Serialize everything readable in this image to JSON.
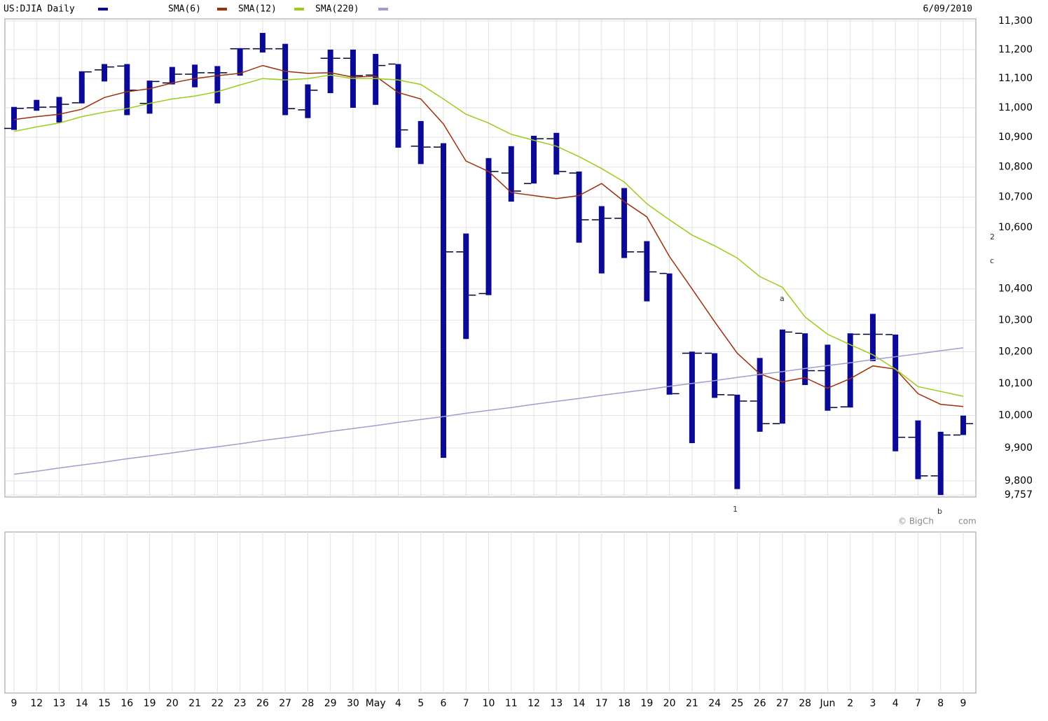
{
  "chart_data": {
    "type": "ohlc",
    "title": "US:DJIA Daily",
    "date": "6/09/2010",
    "log_scale": true,
    "grid": true,
    "categories": [
      "9",
      "12",
      "13",
      "14",
      "15",
      "16",
      "19",
      "20",
      "21",
      "22",
      "23",
      "26",
      "27",
      "28",
      "29",
      "30",
      "May",
      "4",
      "5",
      "6",
      "7",
      "10",
      "11",
      "12",
      "13",
      "14",
      "17",
      "18",
      "19",
      "20",
      "21",
      "24",
      "25",
      "26",
      "27",
      "28",
      "Jun",
      "2",
      "3",
      "4",
      "7",
      "8",
      "9"
    ],
    "ylim": [
      9751,
      11307
    ],
    "yticks": [
      {
        "value": 11300,
        "label": "11,300"
      },
      {
        "value": 11200,
        "label": "11,200"
      },
      {
        "value": 11100,
        "label": "11,100"
      },
      {
        "value": 11000,
        "label": "11,000"
      },
      {
        "value": 10900,
        "label": "10,900"
      },
      {
        "value": 10800,
        "label": "10,800"
      },
      {
        "value": 10700,
        "label": "10,700"
      },
      {
        "value": 10600,
        "label": "10,600"
      },
      {
        "value": 10400,
        "label": "10,400"
      },
      {
        "value": 10300,
        "label": "10,300"
      },
      {
        "value": 10200,
        "label": "10,200"
      },
      {
        "value": 10100,
        "label": "10,100"
      },
      {
        "value": 10000,
        "label": "10,000"
      },
      {
        "value": 9900,
        "label": "9,900"
      },
      {
        "value": 9800,
        "label": "9,800"
      },
      {
        "value": 9757,
        "label": "9,757"
      }
    ],
    "series": [
      {
        "name": "US:DJIA Daily",
        "color": "#0a0a96",
        "open": [
          10930,
          11000,
          11003,
          11017,
          11130,
          11143,
          11015,
          11085,
          11115,
          11120,
          11203,
          11203,
          11203,
          10993,
          11170,
          11170,
          11112,
          11150,
          10870,
          10867,
          10520,
          10385,
          10780,
          10745,
          10895,
          10780,
          10625,
          10630,
          10520,
          10450,
          10195,
          10195,
          10064,
          10045,
          9975,
          10258,
          10140,
          10027,
          10255,
          10254,
          9933,
          9815,
          9940
        ],
        "high": [
          11003,
          11027,
          11037,
          11125,
          11150,
          11150,
          11093,
          11140,
          11148,
          11143,
          11205,
          11258,
          11220,
          11080,
          11200,
          11200,
          11185,
          11150,
          10955,
          10880,
          10580,
          10830,
          10870,
          10905,
          10915,
          10785,
          10670,
          10730,
          10555,
          10450,
          10200,
          10195,
          10065,
          10180,
          10270,
          10258,
          10222,
          10258,
          10320,
          10254,
          9985,
          9950,
          10000
        ],
        "low": [
          10925,
          10990,
          10950,
          11015,
          11090,
          10975,
          10980,
          11080,
          11070,
          11015,
          11110,
          11190,
          10975,
          10965,
          11050,
          11000,
          11010,
          10865,
          10810,
          9870,
          10240,
          10380,
          10685,
          10745,
          10775,
          10550,
          10450,
          10500,
          10360,
          10065,
          9915,
          10055,
          9775,
          9950,
          9975,
          10095,
          10015,
          10025,
          10170,
          9890,
          9805,
          9757,
          9940
        ],
        "close": [
          10998,
          11002,
          11012,
          11123,
          11140,
          11060,
          11090,
          11115,
          11120,
          11120,
          11203,
          11203,
          10997,
          11060,
          11170,
          11110,
          11145,
          10925,
          10867,
          10520,
          10380,
          10785,
          10720,
          10895,
          10785,
          10625,
          10630,
          10520,
          10455,
          10068,
          10195,
          10065,
          10045,
          9975,
          10262,
          10140,
          10025,
          10255,
          10255,
          9933,
          9815,
          9940,
          9975
        ]
      },
      {
        "name": "SMA(6)",
        "color": "#a0300a",
        "values": [
          10960,
          10970,
          10978,
          10995,
          11035,
          11055,
          11065,
          11085,
          11100,
          11110,
          11118,
          11145,
          11125,
          11118,
          11120,
          11105,
          11108,
          11052,
          11030,
          10945,
          10820,
          10785,
          10715,
          10705,
          10695,
          10705,
          10745,
          10685,
          10635,
          10505,
          10400,
          10295,
          10195,
          10130,
          10105,
          10118,
          10085,
          10115,
          10155,
          10145,
          10068,
          10035,
          10028
        ]
      },
      {
        "name": "SMA(12)",
        "color": "#9acd1a",
        "values": [
          10920,
          10935,
          10948,
          10970,
          10985,
          10997,
          11015,
          11030,
          11040,
          11055,
          11078,
          11100,
          11095,
          11100,
          11112,
          11100,
          11100,
          11095,
          11080,
          11030,
          10978,
          10948,
          10910,
          10890,
          10870,
          10835,
          10795,
          10750,
          10678,
          10625,
          10575,
          10540,
          10500,
          10440,
          10405,
          10310,
          10255,
          10222,
          10190,
          10145,
          10090,
          10075,
          10060
        ]
      },
      {
        "name": "SMA(220)",
        "color": "#a09ed0",
        "values": [
          9820,
          9829,
          9839,
          9848,
          9857,
          9867,
          9876,
          9885,
          9895,
          9904,
          9913,
          9923,
          9932,
          9941,
          9951,
          9960,
          9969,
          9979,
          9988,
          9997,
          10007,
          10016,
          10025,
          10035,
          10044,
          10053,
          10063,
          10072,
          10081,
          10091,
          10100,
          10109,
          10119,
          10128,
          10137,
          10147,
          10156,
          10165,
          10175,
          10184,
          10193,
          10203,
          10212
        ]
      }
    ],
    "annotations": [
      "2",
      "c",
      "a",
      "1",
      "b"
    ],
    "watermark": [
      "© BigCh",
      "com"
    ]
  }
}
